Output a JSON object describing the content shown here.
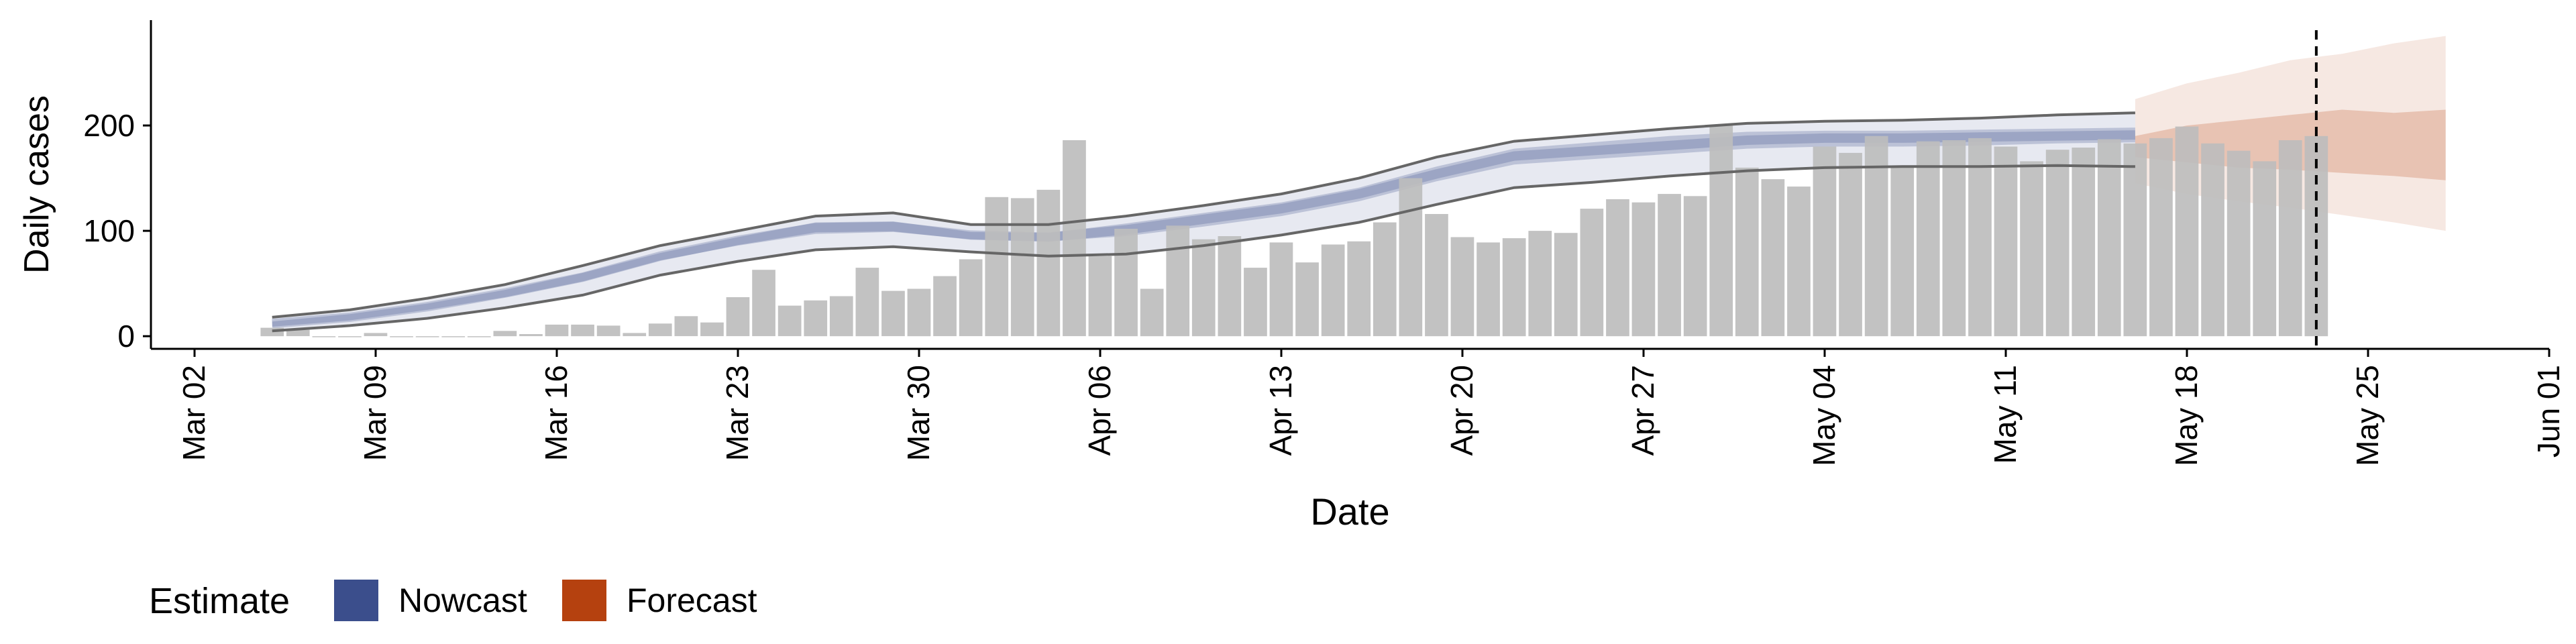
{
  "chart_data": {
    "type": "bar",
    "title": "",
    "xlabel": "Date",
    "ylabel": "Daily cases",
    "x_ticks": [
      "Mar 02",
      "Mar 09",
      "Mar 16",
      "Mar 23",
      "Mar 30",
      "Apr 06",
      "Apr 13",
      "Apr 20",
      "Apr 27",
      "May 04",
      "May 11",
      "May 18",
      "May 25",
      "Jun 01"
    ],
    "y_ticks": [
      0,
      100,
      200
    ],
    "xlim": [
      "2020-03-02",
      "2020-06-01"
    ],
    "ylim": [
      -12,
      300
    ],
    "grid": false,
    "legend": {
      "title": "Estimate",
      "placement": "bottom-left",
      "entries": [
        {
          "name": "Nowcast",
          "color": "#3B4E8C"
        },
        {
          "name": "Forecast",
          "color": "#B5410F"
        }
      ]
    },
    "estimate_date": "2020-05-23",
    "bars": {
      "color": "#BDBDBD",
      "dates": [
        "2020-03-05",
        "2020-03-06",
        "2020-03-07",
        "2020-03-08",
        "2020-03-09",
        "2020-03-10",
        "2020-03-11",
        "2020-03-12",
        "2020-03-13",
        "2020-03-14",
        "2020-03-15",
        "2020-03-16",
        "2020-03-17",
        "2020-03-18",
        "2020-03-19",
        "2020-03-20",
        "2020-03-21",
        "2020-03-22",
        "2020-03-23",
        "2020-03-24",
        "2020-03-25",
        "2020-03-26",
        "2020-03-27",
        "2020-03-28",
        "2020-03-29",
        "2020-03-30",
        "2020-03-31",
        "2020-04-01",
        "2020-04-02",
        "2020-04-03",
        "2020-04-04",
        "2020-04-05",
        "2020-04-06",
        "2020-04-07",
        "2020-04-08",
        "2020-04-09",
        "2020-04-10",
        "2020-04-11",
        "2020-04-12",
        "2020-04-13",
        "2020-04-14",
        "2020-04-15",
        "2020-04-16",
        "2020-04-17",
        "2020-04-18",
        "2020-04-19",
        "2020-04-20",
        "2020-04-21",
        "2020-04-22",
        "2020-04-23",
        "2020-04-24",
        "2020-04-25",
        "2020-04-26",
        "2020-04-27",
        "2020-04-28",
        "2020-04-29",
        "2020-04-30",
        "2020-05-01",
        "2020-05-02",
        "2020-05-03",
        "2020-05-04",
        "2020-05-05",
        "2020-05-06",
        "2020-05-07",
        "2020-05-08",
        "2020-05-09",
        "2020-05-10",
        "2020-05-11",
        "2020-05-12",
        "2020-05-13",
        "2020-05-14",
        "2020-05-15",
        "2020-05-16",
        "2020-05-17",
        "2020-05-18",
        "2020-05-19",
        "2020-05-20",
        "2020-05-21",
        "2020-05-22",
        "2020-05-23"
      ],
      "values": [
        8,
        6,
        0,
        0,
        3,
        0,
        0,
        0,
        0,
        5,
        2,
        11,
        11,
        10,
        3,
        12,
        19,
        13,
        37,
        63,
        29,
        34,
        38,
        65,
        43,
        45,
        57,
        73,
        132,
        131,
        139,
        186,
        76,
        102,
        45,
        105,
        92,
        95,
        65,
        89,
        70,
        87,
        90,
        108,
        150,
        116,
        94,
        89,
        93,
        100,
        98,
        121,
        130,
        127,
        135,
        133,
        200,
        160,
        149,
        142,
        180,
        174,
        190,
        160,
        185,
        186,
        188,
        180,
        166,
        177,
        179,
        187,
        183,
        188,
        199,
        183,
        176,
        166,
        186,
        190
      ]
    },
    "series": [
      {
        "band": "nowcast",
        "color": "#3B4E8C",
        "dates": [
          "2020-03-05",
          "2020-03-08",
          "2020-03-11",
          "2020-03-14",
          "2020-03-17",
          "2020-03-20",
          "2020-03-23",
          "2020-03-26",
          "2020-03-29",
          "2020-04-01",
          "2020-04-04",
          "2020-04-07",
          "2020-04-10",
          "2020-04-13",
          "2020-04-16",
          "2020-04-19",
          "2020-04-22",
          "2020-04-25",
          "2020-04-28",
          "2020-05-01",
          "2020-05-04",
          "2020-05-07",
          "2020-05-10",
          "2020-05-13",
          "2020-05-16"
        ],
        "lower90": [
          5,
          10,
          17,
          27,
          39,
          58,
          71,
          82,
          85,
          80,
          76,
          78,
          86,
          96,
          108,
          125,
          141,
          146,
          152,
          157,
          160,
          161,
          161,
          162,
          161
        ],
        "upper90": [
          18,
          25,
          36,
          49,
          67,
          86,
          100,
          114,
          117,
          106,
          106,
          114,
          124,
          135,
          150,
          170,
          185,
          191,
          197,
          202,
          204,
          205,
          207,
          210,
          212
        ],
        "lower50": [
          9,
          15,
          25,
          37,
          52,
          72,
          86,
          97,
          99,
          92,
          90,
          95,
          104,
          114,
          128,
          147,
          163,
          168,
          173,
          178,
          180,
          180,
          181,
          183,
          184
        ],
        "upper50": [
          14,
          21,
          31,
          44,
          60,
          79,
          94,
          108,
          109,
          99,
          98,
          107,
          117,
          127,
          141,
          161,
          178,
          184,
          190,
          194,
          195,
          195,
          196,
          197,
          198
        ],
        "median": [
          12,
          18,
          28,
          41,
          56,
          76,
          91,
          103,
          104,
          96,
          94,
          101,
          111,
          121,
          135,
          154,
          171,
          176,
          181,
          186,
          188,
          188,
          189,
          190,
          191
        ]
      },
      {
        "band": "forecast",
        "color": "#B5410F",
        "dates": [
          "2020-05-16",
          "2020-05-18",
          "2020-05-20",
          "2020-05-22",
          "2020-05-24",
          "2020-05-26",
          "2020-05-28"
        ],
        "lower90": [
          145,
          135,
          128,
          122,
          115,
          108,
          100
        ],
        "upper90": [
          225,
          240,
          250,
          262,
          268,
          278,
          285
        ],
        "lower50": [
          170,
          165,
          160,
          158,
          155,
          152,
          148
        ],
        "upper50": [
          190,
          200,
          205,
          210,
          215,
          212,
          215
        ]
      }
    ]
  }
}
